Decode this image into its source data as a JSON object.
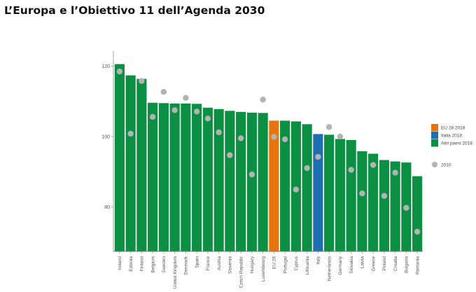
{
  "page": {
    "title": "L’Europa e l’Obiettivo 11 dell’Agenda 2030"
  },
  "chart_data": {
    "type": "bar",
    "title": "",
    "xlabel": "",
    "ylabel": "",
    "ylim": [
      67.3,
      124.3
    ],
    "yticks": [
      80,
      100,
      120
    ],
    "grid": false,
    "legend_position": "right",
    "categories": [
      "Ireland",
      "Estonia",
      "Finland",
      "Belgium",
      "Sweden",
      "United Kingdom",
      "Denmark",
      "Spain",
      "France",
      "Austria",
      "Slovenia",
      "Czech Republic",
      "Hungary",
      "Luxembourg",
      "EU 28",
      "Portugal",
      "Cyprus",
      "Lithuania",
      "Italy",
      "Netherlands",
      "Germany",
      "Slovakia",
      "Latvia",
      "Greece",
      "Poland",
      "Croatia",
      "Bulgaria",
      "Romania"
    ],
    "bar_groups": [
      "altri",
      "altri",
      "altri",
      "altri",
      "altri",
      "altri",
      "altri",
      "altri",
      "altri",
      "altri",
      "altri",
      "altri",
      "altri",
      "altri",
      "eu",
      "altri",
      "altri",
      "altri",
      "italia",
      "altri",
      "altri",
      "altri",
      "altri",
      "altri",
      "altri",
      "altri",
      "altri",
      "altri"
    ],
    "series": [
      {
        "name": "2018",
        "kind": "bar",
        "values": [
          120.6,
          117.4,
          116.4,
          109.6,
          109.5,
          109.4,
          109.4,
          109.3,
          108.2,
          107.8,
          107.3,
          107.0,
          106.8,
          106.7,
          104.5,
          104.5,
          104.3,
          103.5,
          100.7,
          100.5,
          99.3,
          99.0,
          95.8,
          95.1,
          93.3,
          92.9,
          92.6,
          88.7
        ]
      },
      {
        "name": "2010",
        "kind": "dot",
        "values": [
          118.5,
          100.8,
          115.8,
          105.6,
          112.7,
          107.5,
          111.0,
          107.1,
          105.1,
          101.2,
          94.7,
          99.5,
          89.2,
          110.5,
          99.9,
          99.2,
          84.9,
          91.0,
          94.2,
          102.7,
          100.0,
          90.5,
          83.8,
          91.9,
          83.1,
          89.7,
          79.7,
          72.9
        ]
      }
    ],
    "legend": [
      {
        "label": "EU 28 2018",
        "group": "eu",
        "color": "#e8720c",
        "shape": "square"
      },
      {
        "label": "Italia 2018",
        "group": "italia",
        "color": "#1e6fb0",
        "shape": "square"
      },
      {
        "label": "Altri paesi 2018",
        "group": "altri",
        "color": "#0b8f43",
        "shape": "square"
      },
      {
        "label": "2010",
        "group": "dot",
        "color": "#b3b3b3",
        "shape": "circle"
      }
    ],
    "colors": {
      "eu": "#e8720c",
      "italia": "#1e6fb0",
      "altri": "#0b8f43",
      "dot": "#b3b3b3",
      "axis": "#999999"
    }
  }
}
